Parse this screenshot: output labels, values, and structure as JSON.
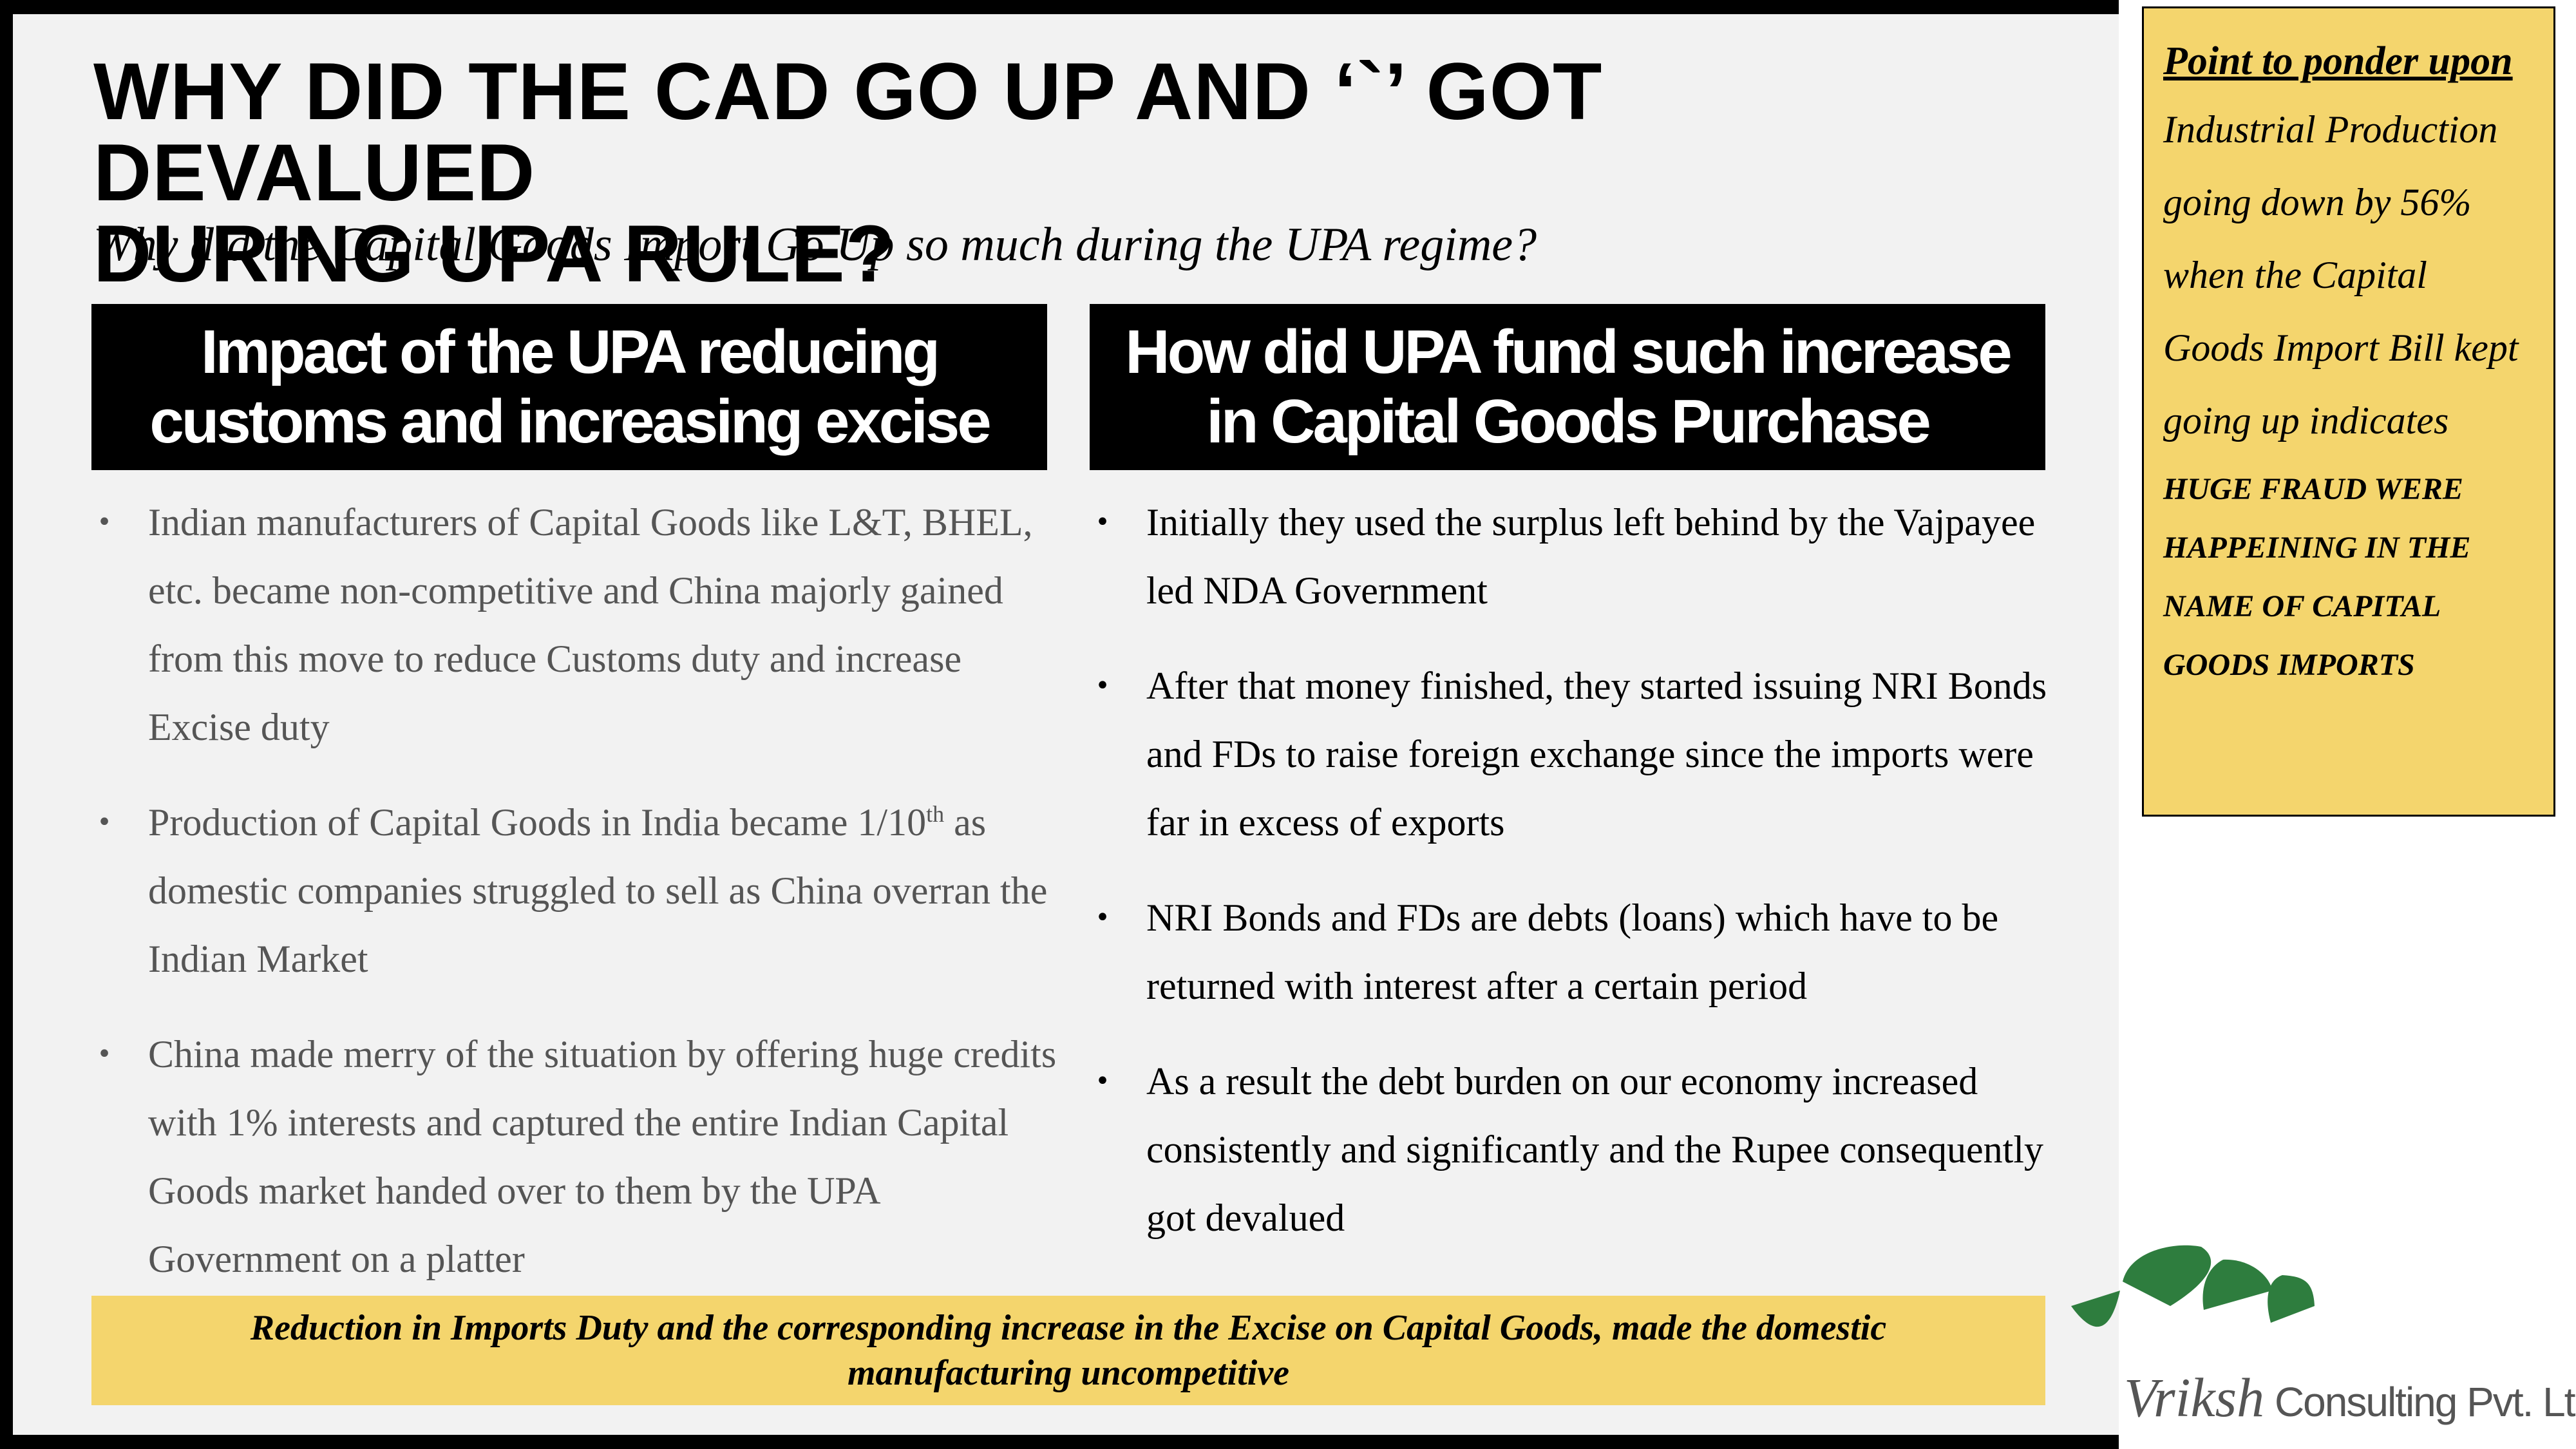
{
  "slide": {
    "title_line1": "WHY DID THE CAD GO UP AND ‘`’ GOT DEVALUED",
    "title_line2": "DURING UPA RULE?",
    "subtitle": "Why did the Capital Goods Import Go Up so much during the UPA regime?"
  },
  "left_column": {
    "heading_line1": "Impact of the UPA reducing",
    "heading_line2": "customs and increasing excise",
    "bullet_symbol": "•",
    "bullets": [
      "Indian manufacturers of Capital Goods like L&T, BHEL, etc. became non-competitive and China majorly gained from this move to reduce Customs duty and increase Excise duty",
      {
        "before": "Production of Capital Goods in India became 1/10",
        "sup": "th",
        "after": " as domestic companies struggled to sell as China overran the Indian Market"
      },
      "China made merry of the situation by offering huge credits with 1% interests and captured the entire Indian Capital Goods market handed over to them by the UPA Government on a platter"
    ]
  },
  "right_column": {
    "heading_line1": "How did UPA fund such increase",
    "heading_line2": "in Capital Goods Purchase",
    "bullets": [
      "Initially they used the surplus left behind by the Vajpayee led NDA Government",
      "After that money finished, they started issuing NRI Bonds and FDs to raise foreign exchange since the imports were far in excess of exports",
      "NRI Bonds and FDs are debts (loans) which have to be returned with interest after a certain period",
      "As a result the debt burden on our economy increased consistently and significantly and the Rupee consequently got devalued"
    ]
  },
  "bottom_banner": {
    "text": "Reduction in Imports Duty and the corresponding increase in the Excise on Capital Goods, made the domestic manufacturing uncompetitive"
  },
  "ponder_box": {
    "title": "Point to ponder upon",
    "body_lines": [
      "Industrial Production",
      "going down by 56%",
      "when the Capital",
      "Goods Import Bill kept",
      "going up indicates"
    ],
    "emphasis_lines": [
      "HUGE FRAUD WERE",
      "HAPPEINING IN THE",
      "NAME OF CAPITAL",
      "GOODS IMPORTS"
    ]
  },
  "logo": {
    "brand": "Vriksh",
    "rest": " Consulting Pvt. Ltd"
  },
  "colors": {
    "frame": "#000000",
    "slide_bg": "#f2f2f2",
    "heading_bg": "#000000",
    "highlight_yellow": "#f4d56d",
    "logo_green": "#2e7d3e",
    "muted_text": "#555555"
  }
}
